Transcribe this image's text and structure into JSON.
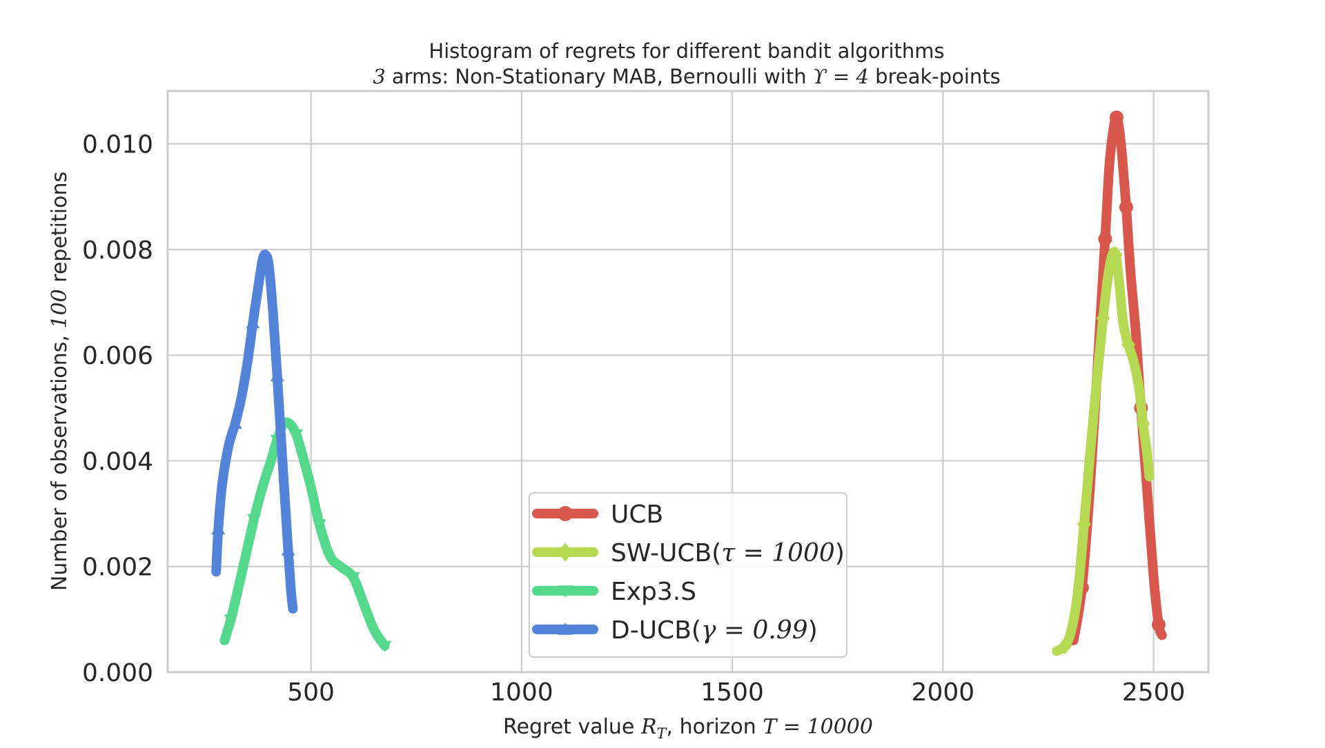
{
  "chart_data": {
    "type": "line",
    "title": "Histogram of regrets for different bandit algorithms",
    "subtitle": {
      "prefix": "3",
      "text_1": " arms: Non-Stationary MAB, Bernoulli with ",
      "symbol": "ϒ = 4",
      "text_2": " break-points"
    },
    "xlabel": {
      "text_1": "Regret value ",
      "symbol_1": "R",
      "subscript": "T",
      "text_2": ", horizon ",
      "symbol_2": "T = 10000"
    },
    "ylabel": {
      "text_1": "Number of observations, ",
      "symbol": "100",
      "text_2": " repetitions"
    },
    "xlim": [
      160,
      2630
    ],
    "ylim": [
      0,
      0.011
    ],
    "xticks": [
      500,
      1000,
      1500,
      2000,
      2500
    ],
    "xtick_labels": [
      "500",
      "1000",
      "1500",
      "2000",
      "2500"
    ],
    "yticks": [
      0,
      0.002,
      0.004,
      0.006,
      0.008,
      0.01
    ],
    "ytick_labels": [
      "0.000",
      "0.002",
      "0.004",
      "0.006",
      "0.008",
      "0.010"
    ],
    "grid": true,
    "legend_position": "lower-center",
    "series": [
      {
        "name": "UCB",
        "math": "",
        "color": "#d9584d",
        "marker": "circle",
        "x": [
          2310,
          2330,
          2350,
          2370,
          2385,
          2395,
          2405,
          2412,
          2418,
          2425,
          2435,
          2445,
          2458,
          2470,
          2485,
          2500,
          2512,
          2520
        ],
        "y": [
          0.0006,
          0.0016,
          0.0036,
          0.0062,
          0.0082,
          0.0096,
          0.0103,
          0.0105,
          0.0103,
          0.0098,
          0.0088,
          0.0076,
          0.0064,
          0.005,
          0.0034,
          0.0018,
          0.0009,
          0.0007
        ]
      },
      {
        "name": "SW-UCB(",
        "math": "τ = 1000",
        "suffix": ")",
        "color": "#b6d954",
        "marker": "diamond",
        "x": [
          2270,
          2290,
          2305,
          2320,
          2335,
          2350,
          2365,
          2380,
          2392,
          2402,
          2410,
          2418,
          2428,
          2440,
          2452,
          2465,
          2475,
          2485,
          2490
        ],
        "y": [
          0.0004,
          0.0005,
          0.0008,
          0.0015,
          0.0028,
          0.0042,
          0.0055,
          0.0067,
          0.0075,
          0.0079,
          0.0079,
          0.0074,
          0.0066,
          0.0062,
          0.0059,
          0.0054,
          0.0047,
          0.0041,
          0.0037
        ]
      },
      {
        "name": "Exp3.S",
        "math": "",
        "color": "#54d98c",
        "marker": "triangle-down",
        "x": [
          295,
          310,
          325,
          345,
          365,
          385,
          405,
          420,
          435,
          450,
          465,
          480,
          500,
          520,
          545,
          570,
          600,
          625,
          650,
          675
        ],
        "y": [
          0.0006,
          0.001,
          0.0015,
          0.0022,
          0.0029,
          0.0035,
          0.004,
          0.0044,
          0.0047,
          0.0047,
          0.0045,
          0.0041,
          0.0035,
          0.0028,
          0.0022,
          0.002,
          0.0018,
          0.0013,
          0.0008,
          0.0005
        ]
      },
      {
        "name": "D-UCB(",
        "math": "γ = 0.99",
        "suffix": ")",
        "color": "#5484d9",
        "marker": "triangle-up",
        "x": [
          275,
          280,
          290,
          305,
          320,
          335,
          350,
          362,
          375,
          385,
          392,
          400,
          410,
          420,
          430,
          438,
          446,
          452,
          457
        ],
        "y": [
          0.0019,
          0.0027,
          0.0036,
          0.0043,
          0.0047,
          0.0052,
          0.0059,
          0.0066,
          0.0073,
          0.0078,
          0.0079,
          0.0077,
          0.0068,
          0.0056,
          0.0043,
          0.0033,
          0.0023,
          0.0016,
          0.0012
        ]
      }
    ]
  }
}
